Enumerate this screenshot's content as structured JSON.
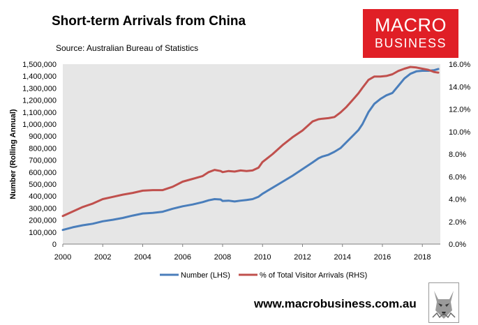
{
  "chart_data": {
    "type": "line",
    "title": "Short-term Arrivals from China",
    "subtitle": "Source: Australian Bureau of Statistics",
    "ylabel": "Number (Rolling Annual)",
    "xlim": [
      2000,
      2018.9
    ],
    "ylim": [
      0,
      1500000
    ],
    "y2lim": [
      0,
      16
    ],
    "x_ticks": [
      "2000",
      "2002",
      "2004",
      "2006",
      "2008",
      "2010",
      "2012",
      "2014",
      "2016",
      "2018"
    ],
    "y_ticks": [
      "0",
      "100,000",
      "200,000",
      "300,000",
      "400,000",
      "500,000",
      "600,000",
      "700,000",
      "800,000",
      "900,000",
      "1,000,000",
      "1,100,000",
      "1,200,000",
      "1,300,000",
      "1,400,000",
      "1,500,000"
    ],
    "y2_ticks": [
      "0.0%",
      "2.0%",
      "4.0%",
      "6.0%",
      "8.0%",
      "10.0%",
      "12.0%",
      "14.0%",
      "16.0%"
    ],
    "grid": false,
    "legend_position": "bottom",
    "series": [
      {
        "name": "Number (LHS)",
        "axis": "left",
        "color": "#4a7ebb",
        "x": [
          2000,
          2000.5,
          2001,
          2001.5,
          2002,
          2002.5,
          2003,
          2003.5,
          2004,
          2004.5,
          2005,
          2005.5,
          2006,
          2006.5,
          2007,
          2007.3,
          2007.6,
          2007.9,
          2008,
          2008.3,
          2008.6,
          2008.9,
          2009.2,
          2009.5,
          2009.8,
          2010,
          2010.5,
          2011,
          2011.5,
          2012,
          2012.5,
          2012.8,
          2013,
          2013.3,
          2013.6,
          2013.9,
          2014.2,
          2014.5,
          2014.8,
          2015,
          2015.3,
          2015.6,
          2015.9,
          2016.2,
          2016.5,
          2016.8,
          2017.1,
          2017.4,
          2017.7,
          2018,
          2018.3,
          2018.6,
          2018.8
        ],
        "values": [
          118000,
          140000,
          157000,
          170000,
          190000,
          203000,
          218000,
          238000,
          255000,
          260000,
          270000,
          295000,
          315000,
          330000,
          350000,
          365000,
          375000,
          372000,
          360000,
          362000,
          355000,
          362000,
          368000,
          375000,
          395000,
          420000,
          470000,
          520000,
          570000,
          625000,
          680000,
          715000,
          730000,
          745000,
          770000,
          800000,
          850000,
          900000,
          950000,
          1000000,
          1100000,
          1170000,
          1210000,
          1240000,
          1260000,
          1320000,
          1380000,
          1420000,
          1440000,
          1445000,
          1445000,
          1450000,
          1460000
        ]
      },
      {
        "name": "% of Total Visitor Arrivals (RHS)",
        "axis": "right",
        "color": "#c0504d",
        "x": [
          2000,
          2000.5,
          2001,
          2001.5,
          2002,
          2002.5,
          2003,
          2003.5,
          2004,
          2004.5,
          2005,
          2005.5,
          2006,
          2006.5,
          2007,
          2007.3,
          2007.6,
          2007.9,
          2008,
          2008.3,
          2008.6,
          2008.9,
          2009.2,
          2009.5,
          2009.8,
          2010,
          2010.5,
          2011,
          2011.5,
          2012,
          2012.5,
          2012.8,
          2013,
          2013.3,
          2013.6,
          2013.9,
          2014.2,
          2014.5,
          2014.8,
          2015,
          2015.3,
          2015.6,
          2015.9,
          2016.2,
          2016.5,
          2016.8,
          2017.1,
          2017.4,
          2017.7,
          2018,
          2018.3,
          2018.6,
          2018.8
        ],
        "values": [
          2.5,
          2.9,
          3.3,
          3.6,
          4.0,
          4.2,
          4.4,
          4.55,
          4.75,
          4.8,
          4.8,
          5.1,
          5.55,
          5.8,
          6.05,
          6.4,
          6.6,
          6.5,
          6.4,
          6.5,
          6.45,
          6.55,
          6.5,
          6.55,
          6.8,
          7.3,
          8.0,
          8.8,
          9.5,
          10.1,
          10.9,
          11.1,
          11.15,
          11.2,
          11.3,
          11.7,
          12.2,
          12.8,
          13.4,
          13.9,
          14.6,
          14.9,
          14.9,
          14.95,
          15.1,
          15.4,
          15.6,
          15.75,
          15.7,
          15.6,
          15.5,
          15.3,
          15.25
        ]
      }
    ]
  },
  "branding": {
    "logo_line1": "MACRO",
    "logo_line2": "BUSINESS",
    "website": "www.macrobusiness.com.au"
  }
}
